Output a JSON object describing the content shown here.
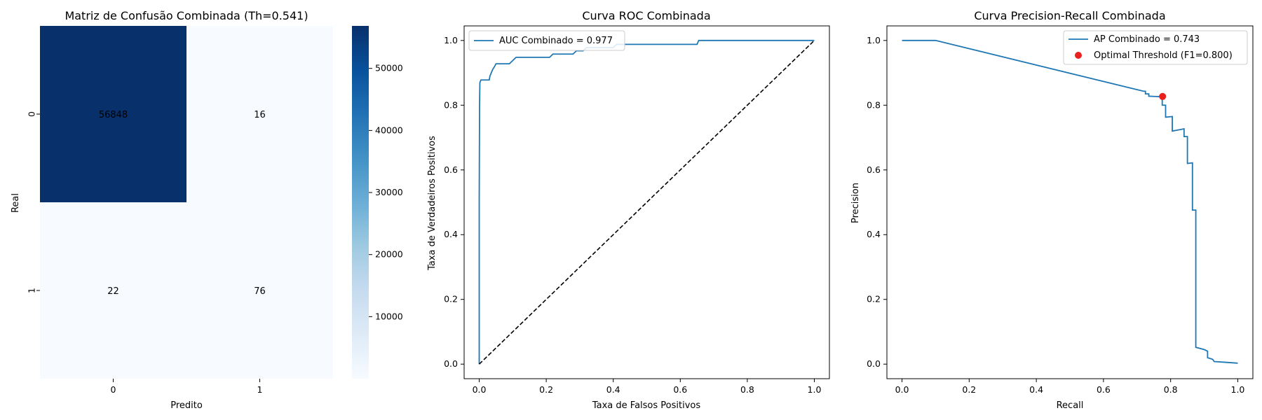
{
  "chart_data": [
    {
      "type": "heatmap",
      "title": "Matriz de Confusão Combinada (Th=0.541)",
      "xlabel": "Predito",
      "ylabel": "Real",
      "x_categories": [
        "0",
        "1"
      ],
      "y_categories": [
        "0",
        "1"
      ],
      "values": [
        [
          56848,
          16
        ],
        [
          22,
          76
        ]
      ],
      "colormap": "Blues",
      "colorbar": {
        "ticks": [
          10000,
          20000,
          30000,
          40000,
          50000
        ],
        "range": [
          0,
          56848
        ]
      },
      "colors": {
        "low": "#f7fbff",
        "high": "#08306b"
      }
    },
    {
      "type": "line",
      "title": "Curva ROC Combinada",
      "xlabel": "Taxa de Falsos Positivos",
      "ylabel": "Taxa de Verdadeiros Positivos",
      "xlim": [
        0,
        1
      ],
      "ylim": [
        0,
        1
      ],
      "xticks": [
        "0.0",
        "0.2",
        "0.4",
        "0.6",
        "0.8",
        "1.0"
      ],
      "yticks": [
        "0.0",
        "0.2",
        "0.4",
        "0.6",
        "0.8",
        "1.0"
      ],
      "legend_position": "top-left",
      "series": [
        {
          "name": "AUC Combinado = 0.977",
          "color": "#1f77b4",
          "style": "solid",
          "points": [
            [
              0,
              0
            ],
            [
              0,
              0.5
            ],
            [
              0.001,
              0.8
            ],
            [
              0.002,
              0.87
            ],
            [
              0.005,
              0.878
            ],
            [
              0.03,
              0.878
            ],
            [
              0.032,
              0.89
            ],
            [
              0.036,
              0.9
            ],
            [
              0.04,
              0.91
            ],
            [
              0.046,
              0.92
            ],
            [
              0.05,
              0.928
            ],
            [
              0.09,
              0.928
            ],
            [
              0.1,
              0.938
            ],
            [
              0.11,
              0.948
            ],
            [
              0.21,
              0.948
            ],
            [
              0.22,
              0.958
            ],
            [
              0.28,
              0.958
            ],
            [
              0.29,
              0.968
            ],
            [
              0.31,
              0.968
            ],
            [
              0.32,
              0.978
            ],
            [
              0.4,
              0.978
            ],
            [
              0.41,
              0.988
            ],
            [
              0.65,
              0.988
            ],
            [
              0.655,
              1.0
            ],
            [
              1.0,
              1.0
            ]
          ]
        },
        {
          "name": "",
          "color": "#000000",
          "style": "dashed",
          "points": [
            [
              0,
              0
            ],
            [
              1,
              1
            ]
          ]
        }
      ]
    },
    {
      "type": "line",
      "title": "Curva Precision-Recall Combinada",
      "xlabel": "Recall",
      "ylabel": "Precision",
      "xlim": [
        0,
        1
      ],
      "ylim": [
        0,
        1
      ],
      "xticks": [
        "0.0",
        "0.2",
        "0.4",
        "0.6",
        "0.8",
        "1.0"
      ],
      "yticks": [
        "0.0",
        "0.2",
        "0.4",
        "0.6",
        "0.8",
        "1.0"
      ],
      "legend_position": "top-right",
      "series": [
        {
          "name": "AP Combinado = 0.743",
          "color": "#1f77b4",
          "style": "solid",
          "points": [
            [
              0,
              1.0
            ],
            [
              0.1,
              1.0
            ],
            [
              0.72,
              0.843
            ],
            [
              0.725,
              0.843
            ],
            [
              0.725,
              0.835
            ],
            [
              0.735,
              0.835
            ],
            [
              0.735,
              0.828
            ],
            [
              0.775,
              0.826
            ],
            [
              0.775,
              0.8
            ],
            [
              0.785,
              0.8
            ],
            [
              0.785,
              0.763
            ],
            [
              0.805,
              0.765
            ],
            [
              0.805,
              0.72
            ],
            [
              0.84,
              0.727
            ],
            [
              0.84,
              0.703
            ],
            [
              0.85,
              0.703
            ],
            [
              0.85,
              0.62
            ],
            [
              0.865,
              0.622
            ],
            [
              0.865,
              0.476
            ],
            [
              0.875,
              0.476
            ],
            [
              0.875,
              0.052
            ],
            [
              0.9,
              0.045
            ],
            [
              0.91,
              0.04
            ],
            [
              0.91,
              0.02
            ],
            [
              0.925,
              0.015
            ],
            [
              0.93,
              0.008
            ],
            [
              0.96,
              0.006
            ],
            [
              1.0,
              0.003
            ]
          ]
        },
        {
          "name": "Optimal Threshold (F1=0.800)",
          "color": "#e8211e",
          "style": "marker",
          "points": [
            [
              0.776,
              0.827
            ]
          ]
        }
      ]
    }
  ]
}
